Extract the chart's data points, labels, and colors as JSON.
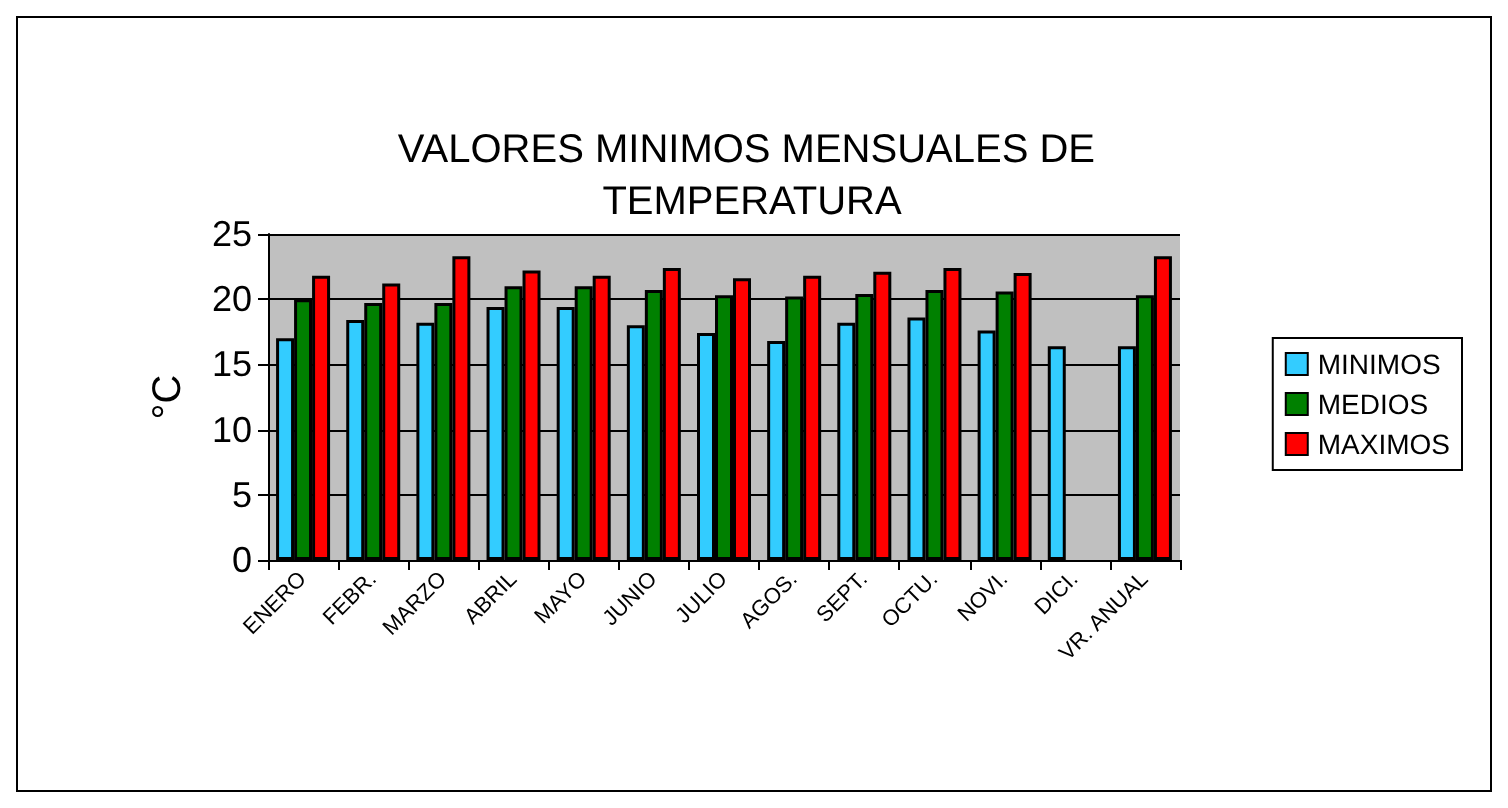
{
  "chart_data": {
    "type": "bar",
    "title": "VALORES MINIMOS MENSUALES DE TEMPERATURA",
    "ylabel": "°C",
    "categories": [
      "ENERO",
      "FEBR.",
      "MARZO",
      "ABRIL",
      "MAYO",
      "JUNIO",
      "JULIO",
      "AGOS.",
      "SEPT.",
      "OCTU.",
      "NOVI.",
      "DICI.",
      "VR. ANUAL"
    ],
    "series": [
      {
        "name": "MINIMOS",
        "color": "#33ccff",
        "values": [
          17.0,
          18.4,
          18.2,
          19.4,
          19.4,
          18.0,
          17.4,
          16.8,
          18.2,
          18.6,
          17.6,
          16.4,
          16.4
        ]
      },
      {
        "name": "MEDIOS",
        "color": "#008000",
        "values": [
          20.0,
          19.7,
          19.7,
          21.0,
          21.0,
          20.7,
          20.3,
          20.2,
          20.4,
          20.7,
          20.6,
          null,
          20.3
        ]
      },
      {
        "name": "MAXIMOS",
        "color": "#ff0000",
        "values": [
          21.8,
          21.2,
          23.3,
          22.2,
          21.8,
          22.4,
          21.6,
          21.8,
          22.1,
          22.4,
          22.0,
          null,
          23.3
        ]
      }
    ],
    "ylim": [
      0,
      25
    ],
    "yticks": [
      0,
      5,
      10,
      15,
      20,
      25
    ],
    "grid": "y",
    "legend": "right"
  }
}
